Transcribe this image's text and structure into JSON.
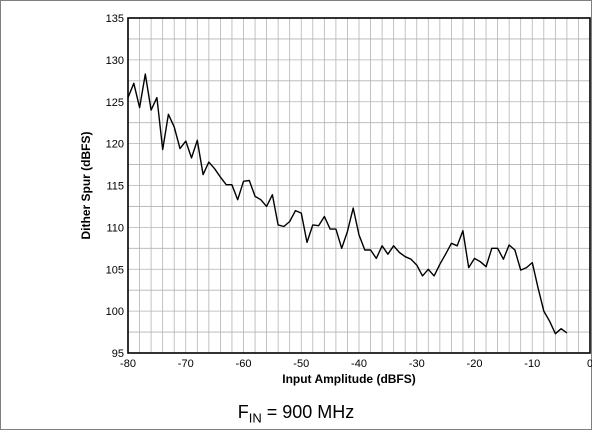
{
  "chart_data": {
    "type": "line",
    "xlabel": "Input Amplitude (dBFS)",
    "ylabel": "Dither Spur (dBFS)",
    "xlim": [
      -80,
      0
    ],
    "ylim": [
      95,
      135
    ],
    "x_ticks": [
      -80,
      -70,
      -60,
      -50,
      -40,
      -30,
      -20,
      -10,
      0
    ],
    "y_ticks": [
      95,
      100,
      105,
      110,
      115,
      120,
      125,
      130,
      135
    ],
    "x_tick_labels": [
      "-80",
      "-70",
      "-60",
      "-50",
      "-40",
      "-30",
      "-20",
      "-10",
      "0"
    ],
    "y_tick_labels": [
      "95",
      "100",
      "105",
      "110",
      "115",
      "120",
      "125",
      "130",
      "135"
    ],
    "x_minor_step": 2,
    "y_minor_step": 2.5,
    "grid": true,
    "line_color": "#000000",
    "grid_color": "#b3b3b3",
    "series": [
      {
        "values": [
          [
            -80,
            125.5
          ],
          [
            -79,
            127.2
          ],
          [
            -78,
            124.3
          ],
          [
            -77,
            128.3
          ],
          [
            -76,
            124.0
          ],
          [
            -75,
            125.5
          ],
          [
            -74,
            119.3
          ],
          [
            -73,
            123.5
          ],
          [
            -72,
            122.0
          ],
          [
            -71,
            119.4
          ],
          [
            -70,
            120.3
          ],
          [
            -69,
            118.3
          ],
          [
            -68,
            120.4
          ],
          [
            -67,
            116.3
          ],
          [
            -66,
            117.8
          ],
          [
            -65,
            117.0
          ],
          [
            -64,
            116.0
          ],
          [
            -63,
            115.1
          ],
          [
            -62,
            115.1
          ],
          [
            -61,
            113.3
          ],
          [
            -60,
            115.5
          ],
          [
            -59,
            115.6
          ],
          [
            -58,
            113.7
          ],
          [
            -57,
            113.3
          ],
          [
            -56,
            112.5
          ],
          [
            -55,
            113.9
          ],
          [
            -54,
            110.3
          ],
          [
            -53,
            110.1
          ],
          [
            -52,
            110.7
          ],
          [
            -51,
            112.0
          ],
          [
            -50,
            111.7
          ],
          [
            -49,
            108.2
          ],
          [
            -48,
            110.3
          ],
          [
            -47,
            110.2
          ],
          [
            -46,
            111.3
          ],
          [
            -45,
            109.8
          ],
          [
            -44,
            109.8
          ],
          [
            -43,
            107.5
          ],
          [
            -42,
            109.5
          ],
          [
            -41,
            112.3
          ],
          [
            -40,
            109.1
          ],
          [
            -39,
            107.3
          ],
          [
            -38,
            107.3
          ],
          [
            -37,
            106.3
          ],
          [
            -36,
            107.8
          ],
          [
            -35,
            106.8
          ],
          [
            -34,
            107.8
          ],
          [
            -33,
            107.0
          ],
          [
            -32,
            106.5
          ],
          [
            -31,
            106.2
          ],
          [
            -30,
            105.5
          ],
          [
            -29,
            104.2
          ],
          [
            -28,
            105.0
          ],
          [
            -27,
            104.2
          ],
          [
            -26,
            105.6
          ],
          [
            -25,
            106.8
          ],
          [
            -24,
            108.1
          ],
          [
            -23,
            107.8
          ],
          [
            -22,
            109.6
          ],
          [
            -21,
            105.2
          ],
          [
            -20,
            106.3
          ],
          [
            -19,
            105.9
          ],
          [
            -18,
            105.3
          ],
          [
            -17,
            107.5
          ],
          [
            -16,
            107.5
          ],
          [
            -15,
            106.2
          ],
          [
            -14,
            107.9
          ],
          [
            -13,
            107.3
          ],
          [
            -12,
            104.9
          ],
          [
            -11,
            105.2
          ],
          [
            -10,
            105.8
          ],
          [
            -9,
            102.8
          ],
          [
            -8,
            100.0
          ],
          [
            -7,
            98.8
          ],
          [
            -6,
            97.3
          ],
          [
            -5,
            97.9
          ],
          [
            -4,
            97.4
          ]
        ]
      }
    ]
  },
  "caption": {
    "prefix": "F",
    "subscript": "IN",
    "suffix": " = 900 MHz"
  }
}
